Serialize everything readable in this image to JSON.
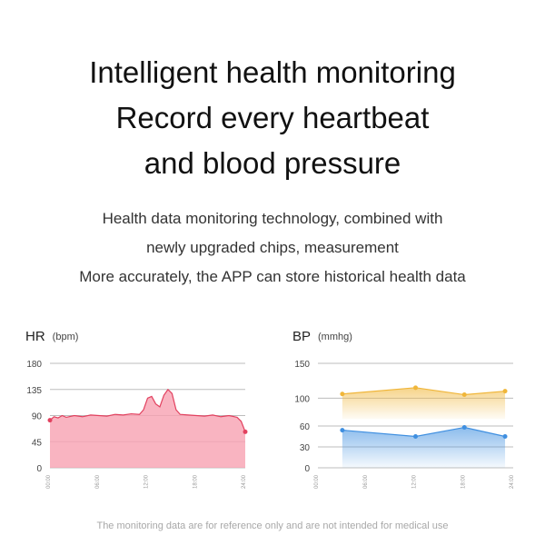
{
  "headline": {
    "line1": "Intelligent health monitoring",
    "line2": "Record every heartbeat",
    "line3": "and blood pressure"
  },
  "description": {
    "line1": "Health data monitoring technology, combined with",
    "line2": "newly upgraded chips, measurement",
    "line3": "More accurately, the APP can store historical health data"
  },
  "footnote": "The monitoring data are for reference only and are not intended for medical use",
  "colors": {
    "hr_line": "#e2415f",
    "hr_fill": "#f7a1b2",
    "bp_high": "#f0b63a",
    "bp_low": "#3f8fe0",
    "grid": "#bdbdbd"
  },
  "chart_data": [
    {
      "type": "area",
      "title": "HR",
      "unit": "(bpm)",
      "yticks": [
        0,
        45,
        90,
        135,
        180
      ],
      "ylim": [
        0,
        180
      ],
      "xlim": [
        0,
        24
      ],
      "xticks": [
        "00:00",
        "06:00",
        "12:00",
        "18:00",
        "24:00"
      ],
      "series": [
        {
          "x": [
            0,
            0.5,
            1,
            1.5,
            2,
            3,
            4,
            5,
            6,
            7,
            8,
            9,
            10,
            11,
            11.5,
            12,
            12.5,
            13,
            13.5,
            14,
            14.5,
            15,
            15.5,
            16,
            17,
            18,
            19,
            20,
            21,
            22,
            23,
            23.5,
            24
          ],
          "y": [
            82,
            88,
            86,
            90,
            87,
            90,
            88,
            91,
            90,
            89,
            92,
            91,
            93,
            92,
            100,
            120,
            123,
            110,
            105,
            125,
            135,
            128,
            100,
            92,
            91,
            90,
            89,
            91,
            88,
            90,
            87,
            80,
            62
          ]
        }
      ]
    },
    {
      "type": "line",
      "title": "BP",
      "unit": "(mmhg)",
      "yticks": [
        0,
        30,
        60,
        100,
        150
      ],
      "ylim": [
        0,
        150
      ],
      "xlim": [
        0,
        24
      ],
      "xticks": [
        "00:00",
        "06:00",
        "12:00",
        "18:00",
        "24:00"
      ],
      "series": [
        {
          "x": [
            3,
            12,
            18,
            23
          ],
          "y": [
            106,
            115,
            105,
            110
          ]
        },
        {
          "x": [
            3,
            12,
            18,
            23
          ],
          "y": [
            54,
            45,
            58,
            45
          ]
        }
      ]
    }
  ]
}
